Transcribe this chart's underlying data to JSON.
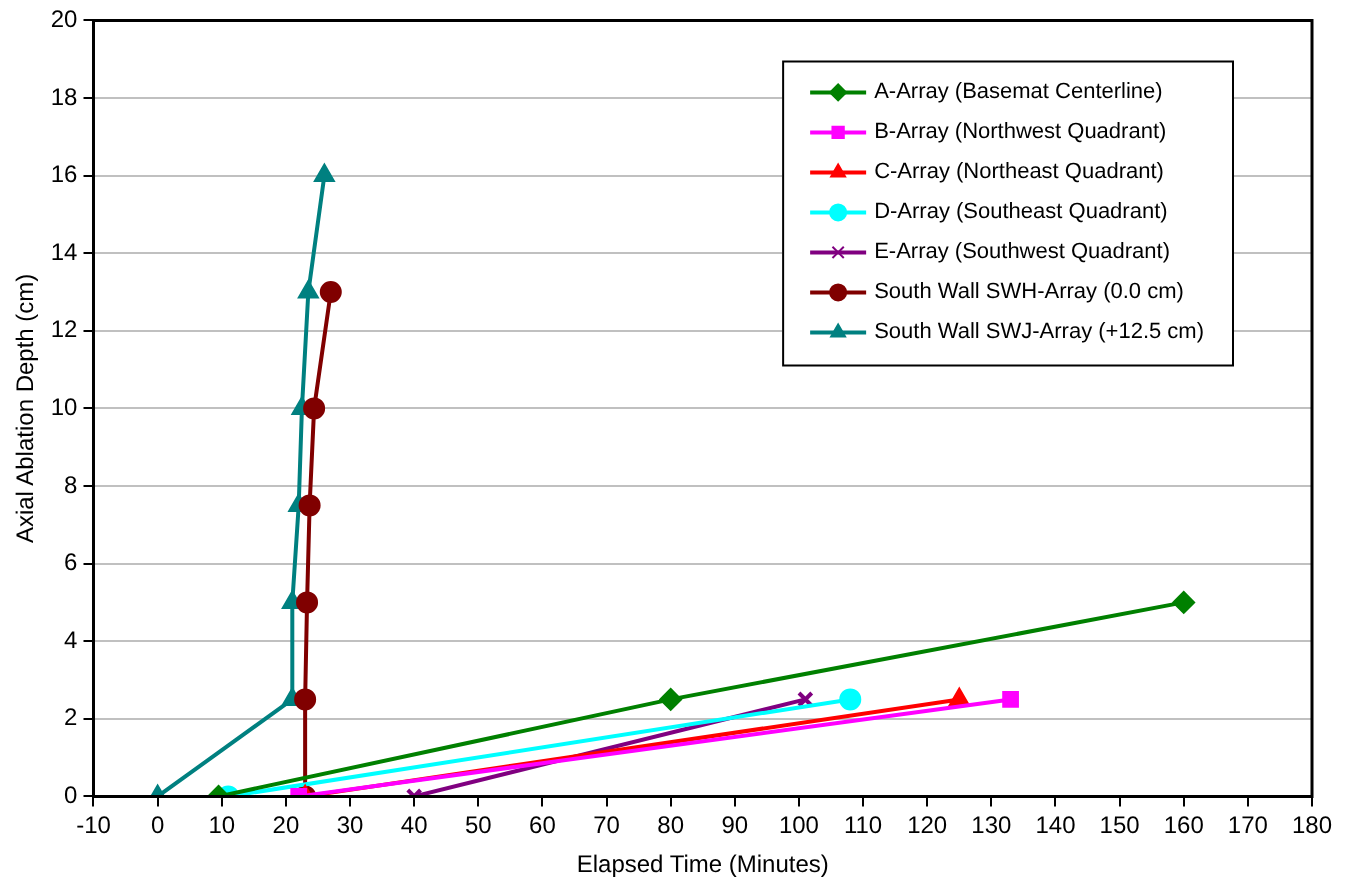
{
  "chart_data": {
    "type": "line",
    "xlabel": "Elapsed Time (Minutes)",
    "ylabel": "Axial Ablation Depth (cm)",
    "xlim": [
      -10,
      180
    ],
    "xticks": [
      -10,
      0,
      10,
      20,
      30,
      40,
      50,
      60,
      70,
      80,
      90,
      100,
      110,
      120,
      130,
      140,
      150,
      160,
      170,
      180
    ],
    "ylim": [
      0,
      20
    ],
    "yticks": [
      0,
      2,
      4,
      6,
      8,
      10,
      12,
      14,
      16,
      18,
      20
    ],
    "grid": "y",
    "legend": "top right",
    "series": [
      {
        "name": "A-Array (Basemat Centerline)",
        "color": "#008000",
        "marker": "diamond",
        "x": [
          9.5,
          80,
          160
        ],
        "values": [
          0,
          2.5,
          5
        ]
      },
      {
        "name": "B-Array (Northwest Quadrant)",
        "color": "#ff00ff",
        "marker": "square",
        "x": [
          22,
          133
        ],
        "values": [
          0,
          2.5
        ]
      },
      {
        "name": "C-Array (Northeast Quadrant)",
        "color": "#ff0000",
        "marker": "triangle",
        "x": [
          23,
          125
        ],
        "values": [
          0,
          2.5
        ]
      },
      {
        "name": "D-Array (Southeast Quadrant)",
        "color": "#00ffff",
        "marker": "circle",
        "x": [
          11,
          108
        ],
        "values": [
          0,
          2.5
        ]
      },
      {
        "name": "E-Array (Southwest Quadrant)",
        "color": "#800080",
        "marker": "cross",
        "x": [
          40,
          101
        ],
        "values": [
          0,
          2.5
        ]
      },
      {
        "name": "South Wall SWH-Array (0.0 cm)",
        "color": "#800000",
        "marker": "circle",
        "x": [
          23,
          23,
          23.3,
          23.7,
          24.4,
          27
        ],
        "values": [
          0,
          2.5,
          5,
          7.5,
          10,
          13
        ]
      },
      {
        "name": "South Wall SWJ-Array (+12.5 cm)",
        "color": "#008080",
        "marker": "triangle",
        "x": [
          0,
          21,
          21,
          22,
          22.5,
          23.5,
          26
        ],
        "values": [
          0,
          2.5,
          5,
          7.5,
          10,
          13,
          16
        ]
      }
    ]
  }
}
